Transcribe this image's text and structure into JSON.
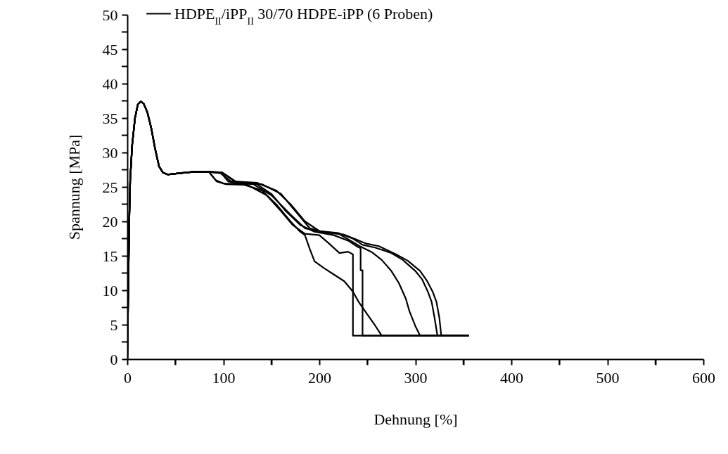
{
  "chart_data": {
    "type": "line",
    "xlabel": "Dehnung [%]",
    "ylabel": "Spannung [MPa]",
    "xlim": [
      0,
      600
    ],
    "ylim": [
      0,
      50
    ],
    "xticks": [
      0,
      {
        "value": 50,
        "label": null
      },
      100,
      {
        "value": 150,
        "label": null
      },
      200,
      {
        "value": 250,
        "label": null
      },
      300,
      {
        "value": 350,
        "label": null
      },
      400,
      {
        "value": 450,
        "label": null
      },
      500,
      {
        "value": 550,
        "label": null
      },
      600
    ],
    "yticks": [
      0,
      {
        "value": 2.5,
        "label": null
      },
      5,
      {
        "value": 7.5,
        "label": null
      },
      10,
      {
        "value": 12.5,
        "label": null
      },
      15,
      {
        "value": 17.5,
        "label": null
      },
      20,
      {
        "value": 22.5,
        "label": null
      },
      25,
      {
        "value": 27.5,
        "label": null
      },
      30,
      {
        "value": 32.5,
        "label": null
      },
      35,
      {
        "value": 37.5,
        "label": null
      },
      40,
      {
        "value": 42.5,
        "label": null
      },
      45,
      {
        "value": 47.5,
        "label": null
      },
      50
    ],
    "grid": false,
    "legend": "top left",
    "marker": "none",
    "line_style": "solid",
    "series": [
      {
        "name": "HDPE$_{II}$/iPP$_{II}$ 30/70 HDPE-iPP (6 Proben)",
        "color": "#000000",
        "x": [
          0,
          1,
          2,
          3,
          5,
          8,
          11,
          14,
          17,
          21,
          25,
          29,
          33,
          37,
          42,
          55,
          70,
          85,
          92,
          100,
          120,
          140,
          155,
          170,
          180,
          185,
          190,
          195,
          205,
          215,
          226,
          235,
          241,
          250,
          258,
          265,
          355
        ],
        "values": [
          0,
          10,
          20,
          26,
          31,
          35,
          37,
          37.4,
          37.1,
          35.8,
          33.5,
          30.5,
          28,
          27.1,
          26.8,
          27,
          27.2,
          27.2,
          26,
          25.5,
          25.4,
          24.5,
          22.5,
          20,
          18.5,
          18,
          16,
          14.2,
          13.2,
          12.3,
          11.3,
          9.8,
          8.3,
          6.5,
          4.9,
          3.4,
          3.4
        ]
      },
      {
        "color": "#000000",
        "x": [
          0,
          1,
          2,
          3,
          5,
          8,
          11,
          14,
          17,
          21,
          25,
          29,
          33,
          37,
          42,
          55,
          70,
          85,
          93,
          103,
          125,
          145,
          160,
          172,
          185,
          200,
          210,
          221,
          230,
          235,
          235,
          355
        ],
        "values": [
          0,
          10,
          20,
          26,
          31,
          35,
          37,
          37.4,
          37.1,
          35.8,
          33.5,
          30.5,
          28,
          27.1,
          26.8,
          27,
          27.2,
          27.2,
          25.8,
          25.4,
          25.3,
          23.8,
          21.5,
          19.5,
          18.2,
          18,
          16.8,
          15.4,
          15.6,
          15.2,
          3.4,
          3.4
        ]
      },
      {
        "color": "#000000",
        "x": [
          0,
          1,
          2,
          3,
          5,
          8,
          11,
          14,
          17,
          21,
          25,
          29,
          33,
          37,
          42,
          55,
          70,
          85,
          90,
          98,
          105,
          115,
          135,
          150,
          165,
          180,
          195,
          215,
          230,
          240,
          243,
          243,
          245,
          245,
          355
        ],
        "values": [
          0,
          10,
          20,
          26,
          31,
          35,
          37,
          37.4,
          37.1,
          35.8,
          33.5,
          30.5,
          28,
          27.1,
          26.8,
          27,
          27.2,
          27.2,
          27.1,
          27,
          25.8,
          25.5,
          25.4,
          24,
          21.5,
          19.5,
          18.5,
          18,
          17.2,
          16.3,
          16.1,
          12.9,
          12.9,
          3.4,
          3.4
        ]
      },
      {
        "color": "#000000",
        "x": [
          0,
          1,
          2,
          3,
          5,
          8,
          11,
          14,
          17,
          21,
          25,
          29,
          33,
          37,
          42,
          55,
          70,
          85,
          97,
          108,
          130,
          150,
          170,
          185,
          200,
          220,
          235,
          242,
          255,
          265,
          275,
          283,
          290,
          294,
          300,
          305,
          355
        ],
        "values": [
          0,
          10,
          20,
          26,
          31,
          35,
          37,
          37.4,
          37.1,
          35.8,
          33.5,
          30.5,
          28,
          27.1,
          26.8,
          27,
          27.2,
          27.2,
          27,
          25.8,
          25.5,
          23.8,
          21,
          19,
          18.6,
          18.2,
          17,
          16.4,
          15.5,
          14.4,
          12.8,
          11,
          8.8,
          6.9,
          4.8,
          3.4,
          3.4
        ]
      },
      {
        "color": "#000000",
        "x": [
          0,
          1,
          2,
          3,
          5,
          8,
          11,
          14,
          17,
          21,
          25,
          29,
          33,
          37,
          42,
          55,
          70,
          85,
          98,
          112,
          135,
          155,
          170,
          185,
          200,
          220,
          235,
          245,
          258,
          275,
          287,
          300,
          307,
          313,
          317,
          320,
          323,
          355
        ],
        "values": [
          0,
          10,
          20,
          26,
          31,
          35,
          37,
          37.4,
          37.1,
          35.8,
          33.5,
          30.5,
          28,
          27.1,
          26.8,
          27,
          27.2,
          27.2,
          27.1,
          25.8,
          25.6,
          24.5,
          22.5,
          20,
          18.6,
          18.3,
          17.5,
          16.6,
          16.2,
          15.4,
          14.4,
          12.8,
          11.6,
          9.8,
          8.3,
          6,
          3.4,
          3.4
        ]
      },
      {
        "color": "#000000",
        "x": [
          0,
          1,
          2,
          3,
          5,
          8,
          11,
          14,
          17,
          21,
          25,
          29,
          33,
          37,
          42,
          55,
          70,
          85,
          99,
          115,
          140,
          160,
          175,
          190,
          205,
          225,
          238,
          248,
          262,
          280,
          292,
          305,
          312,
          318,
          322,
          325,
          327,
          355
        ],
        "values": [
          0,
          10,
          20,
          26,
          31,
          35,
          37,
          37.4,
          37.1,
          35.8,
          33.5,
          30.5,
          28,
          27.1,
          26.8,
          27,
          27.2,
          27.2,
          27.1,
          25.6,
          25.4,
          24,
          21.5,
          19,
          18.4,
          18.1,
          17.4,
          16.8,
          16.4,
          15.2,
          14.3,
          12.8,
          11.4,
          9.8,
          8.3,
          6,
          3.4,
          3.4
        ]
      }
    ]
  }
}
